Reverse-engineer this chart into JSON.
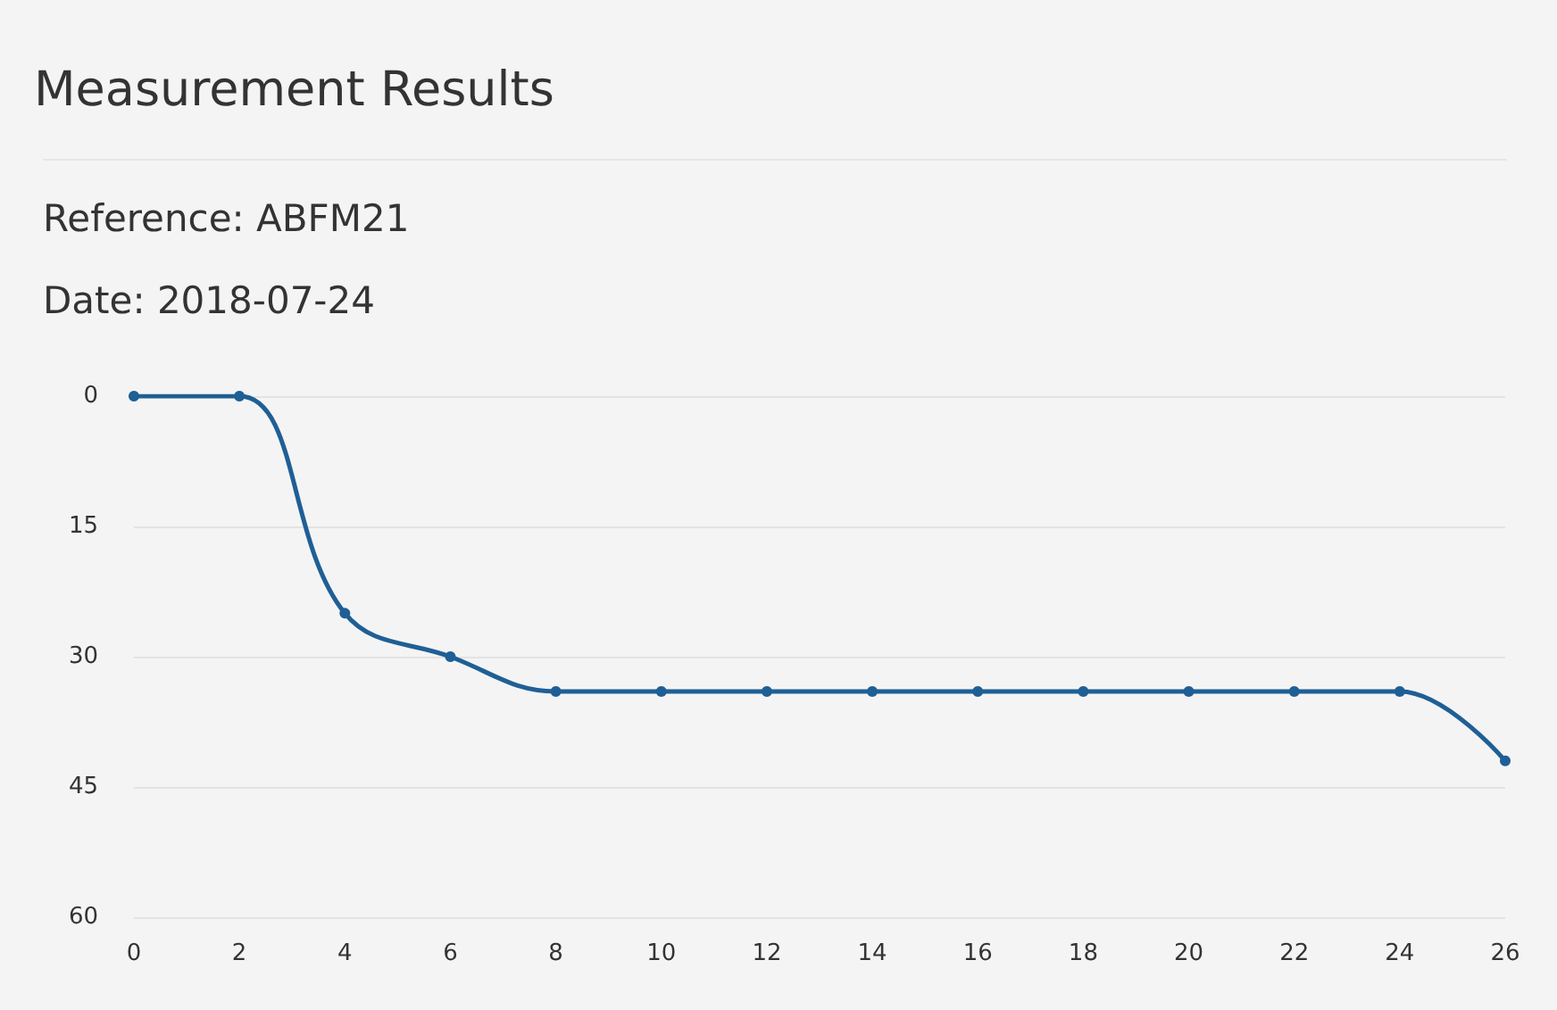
{
  "chart_data": {
    "type": "line",
    "title": "Measurement Results",
    "subtitle": "Reference: ABFM21",
    "annotations": [
      "Date: 2018-07-24"
    ],
    "x": [
      0,
      2,
      4,
      6,
      8,
      10,
      12,
      14,
      16,
      18,
      20,
      22,
      24,
      26
    ],
    "series": [
      {
        "color": "#1f5f95",
        "values": [
          0,
          0,
          25,
          30,
          34,
          34,
          34,
          34,
          34,
          34,
          34,
          34,
          34,
          42
        ]
      }
    ],
    "xlim": [
      0,
      26
    ],
    "xticks": [
      0,
      2,
      4,
      6,
      8,
      10,
      12,
      14,
      16,
      18,
      20,
      22,
      24,
      26
    ],
    "ylim": [
      60,
      0
    ],
    "yticks": [
      0,
      15,
      30,
      45,
      60
    ],
    "grid": "y",
    "marker": "circle",
    "line_style": "solid"
  }
}
